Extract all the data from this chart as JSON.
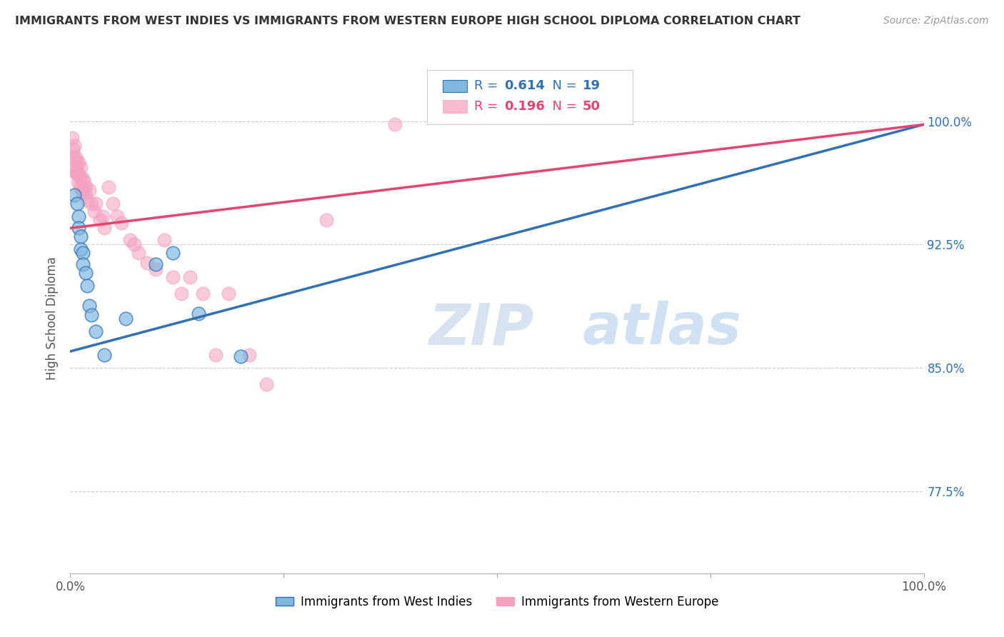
{
  "title": "IMMIGRANTS FROM WEST INDIES VS IMMIGRANTS FROM WESTERN EUROPE HIGH SCHOOL DIPLOMA CORRELATION CHART",
  "source": "Source: ZipAtlas.com",
  "ylabel": "High School Diploma",
  "ytick_labels": [
    "77.5%",
    "85.0%",
    "92.5%",
    "100.0%"
  ],
  "ytick_values": [
    0.775,
    0.85,
    0.925,
    1.0
  ],
  "xlim": [
    0.0,
    1.0
  ],
  "ylim": [
    0.725,
    1.035
  ],
  "legend_r1": "0.614",
  "legend_n1": "19",
  "legend_r2": "0.196",
  "legend_n2": "50",
  "color_blue": "#80b8e0",
  "color_pink": "#f4a0c0",
  "color_line_blue": "#3070b8",
  "color_line_pink": "#e8436e",
  "watermark_zip": "ZIP",
  "watermark_atlas": "atlas",
  "blue_points": [
    [
      0.005,
      0.955
    ],
    [
      0.008,
      0.95
    ],
    [
      0.01,
      0.942
    ],
    [
      0.01,
      0.935
    ],
    [
      0.012,
      0.93
    ],
    [
      0.012,
      0.922
    ],
    [
      0.015,
      0.92
    ],
    [
      0.015,
      0.913
    ],
    [
      0.018,
      0.908
    ],
    [
      0.02,
      0.9
    ],
    [
      0.022,
      0.888
    ],
    [
      0.025,
      0.882
    ],
    [
      0.03,
      0.872
    ],
    [
      0.04,
      0.858
    ],
    [
      0.065,
      0.88
    ],
    [
      0.1,
      0.913
    ],
    [
      0.12,
      0.92
    ],
    [
      0.15,
      0.883
    ],
    [
      0.2,
      0.857
    ]
  ],
  "pink_points": [
    [
      0.002,
      0.99
    ],
    [
      0.003,
      0.983
    ],
    [
      0.004,
      0.978
    ],
    [
      0.004,
      0.97
    ],
    [
      0.005,
      0.985
    ],
    [
      0.006,
      0.978
    ],
    [
      0.006,
      0.972
    ],
    [
      0.007,
      0.968
    ],
    [
      0.008,
      0.975
    ],
    [
      0.008,
      0.968
    ],
    [
      0.009,
      0.963
    ],
    [
      0.01,
      0.975
    ],
    [
      0.01,
      0.968
    ],
    [
      0.011,
      0.96
    ],
    [
      0.012,
      0.972
    ],
    [
      0.012,
      0.965
    ],
    [
      0.013,
      0.958
    ],
    [
      0.015,
      0.965
    ],
    [
      0.015,
      0.957
    ],
    [
      0.016,
      0.963
    ],
    [
      0.017,
      0.956
    ],
    [
      0.018,
      0.96
    ],
    [
      0.02,
      0.952
    ],
    [
      0.022,
      0.958
    ],
    [
      0.025,
      0.95
    ],
    [
      0.028,
      0.945
    ],
    [
      0.03,
      0.95
    ],
    [
      0.035,
      0.94
    ],
    [
      0.038,
      0.942
    ],
    [
      0.04,
      0.935
    ],
    [
      0.045,
      0.96
    ],
    [
      0.05,
      0.95
    ],
    [
      0.055,
      0.942
    ],
    [
      0.06,
      0.938
    ],
    [
      0.07,
      0.928
    ],
    [
      0.075,
      0.925
    ],
    [
      0.08,
      0.92
    ],
    [
      0.09,
      0.914
    ],
    [
      0.1,
      0.91
    ],
    [
      0.11,
      0.928
    ],
    [
      0.12,
      0.905
    ],
    [
      0.13,
      0.895
    ],
    [
      0.14,
      0.905
    ],
    [
      0.155,
      0.895
    ],
    [
      0.17,
      0.858
    ],
    [
      0.185,
      0.895
    ],
    [
      0.21,
      0.858
    ],
    [
      0.23,
      0.84
    ],
    [
      0.3,
      0.94
    ],
    [
      0.38,
      0.998
    ]
  ],
  "blue_line": [
    [
      0.0,
      0.86
    ],
    [
      1.0,
      0.998
    ]
  ],
  "pink_line": [
    [
      0.0,
      0.935
    ],
    [
      1.0,
      0.998
    ]
  ],
  "bottom_legend_blue": "Immigrants from West Indies",
  "bottom_legend_pink": "Immigrants from Western Europe"
}
